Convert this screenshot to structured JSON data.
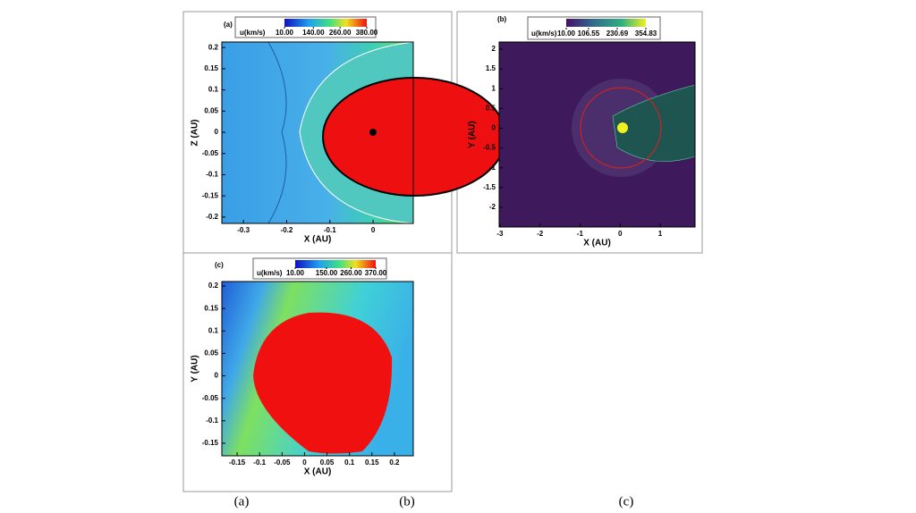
{
  "panels": [
    {
      "tag": "(a)",
      "colorbar": {
        "title": "u(km/s)",
        "ticks": [
          {
            "value": 10,
            "label": "10.00"
          },
          {
            "value": 140,
            "label": "140.00"
          },
          {
            "value": 260,
            "label": "260.00"
          },
          {
            "value": 380,
            "label": "380.00"
          }
        ]
      },
      "xlabel": "X (AU)",
      "ylabel": "Z (AU)",
      "xlim": [
        -0.35,
        0.093
      ],
      "ylim": [
        -0.215,
        0.213
      ],
      "xticks": [
        -0.3,
        -0.2,
        -0.1,
        0
      ],
      "yticks": [
        0.2,
        0.15,
        0.1,
        0.05,
        0,
        -0.05,
        -0.1,
        -0.15,
        -0.2
      ]
    },
    {
      "tag": "(b)",
      "colorbar": {
        "title": "u(km/s)",
        "ticks": [
          {
            "value": 10,
            "label": "10.00"
          },
          {
            "value": 106.55,
            "label": "106.55"
          },
          {
            "value": 230.69,
            "label": "230.69"
          },
          {
            "value": 354.83,
            "label": "354.83"
          }
        ]
      },
      "xlabel": "X (AU)",
      "ylabel": "Y (AU)",
      "xlim": [
        -3.02,
        1.87
      ],
      "ylim": [
        -2.5,
        2.18
      ],
      "xticks": [
        -3,
        -2,
        -1,
        0,
        1
      ],
      "yticks": [
        2,
        1.5,
        1,
        0.5,
        0,
        -0.5,
        -1,
        -1.5,
        -2
      ]
    },
    {
      "tag": "(c)",
      "colorbar": {
        "title": "u(km/s)",
        "ticks": [
          {
            "value": 10,
            "label": "10.00"
          },
          {
            "value": 150,
            "label": "150.00"
          },
          {
            "value": 260,
            "label": "260.00"
          },
          {
            "value": 370,
            "label": "370.00"
          }
        ]
      },
      "xlabel": "X (AU)",
      "ylabel": "Y (AU)",
      "xlim": [
        -0.184,
        0.242
      ],
      "ylim": [
        -0.178,
        0.21
      ],
      "xticks": [
        -0.15,
        -0.1,
        -0.05,
        0,
        0.05,
        0.1,
        0.15,
        0.2
      ],
      "yticks": [
        0.2,
        0.15,
        0.1,
        0.05,
        0,
        -0.05,
        -0.1,
        -0.15
      ]
    }
  ],
  "captions": [
    "(a)",
    "(b)",
    "(c)"
  ]
}
